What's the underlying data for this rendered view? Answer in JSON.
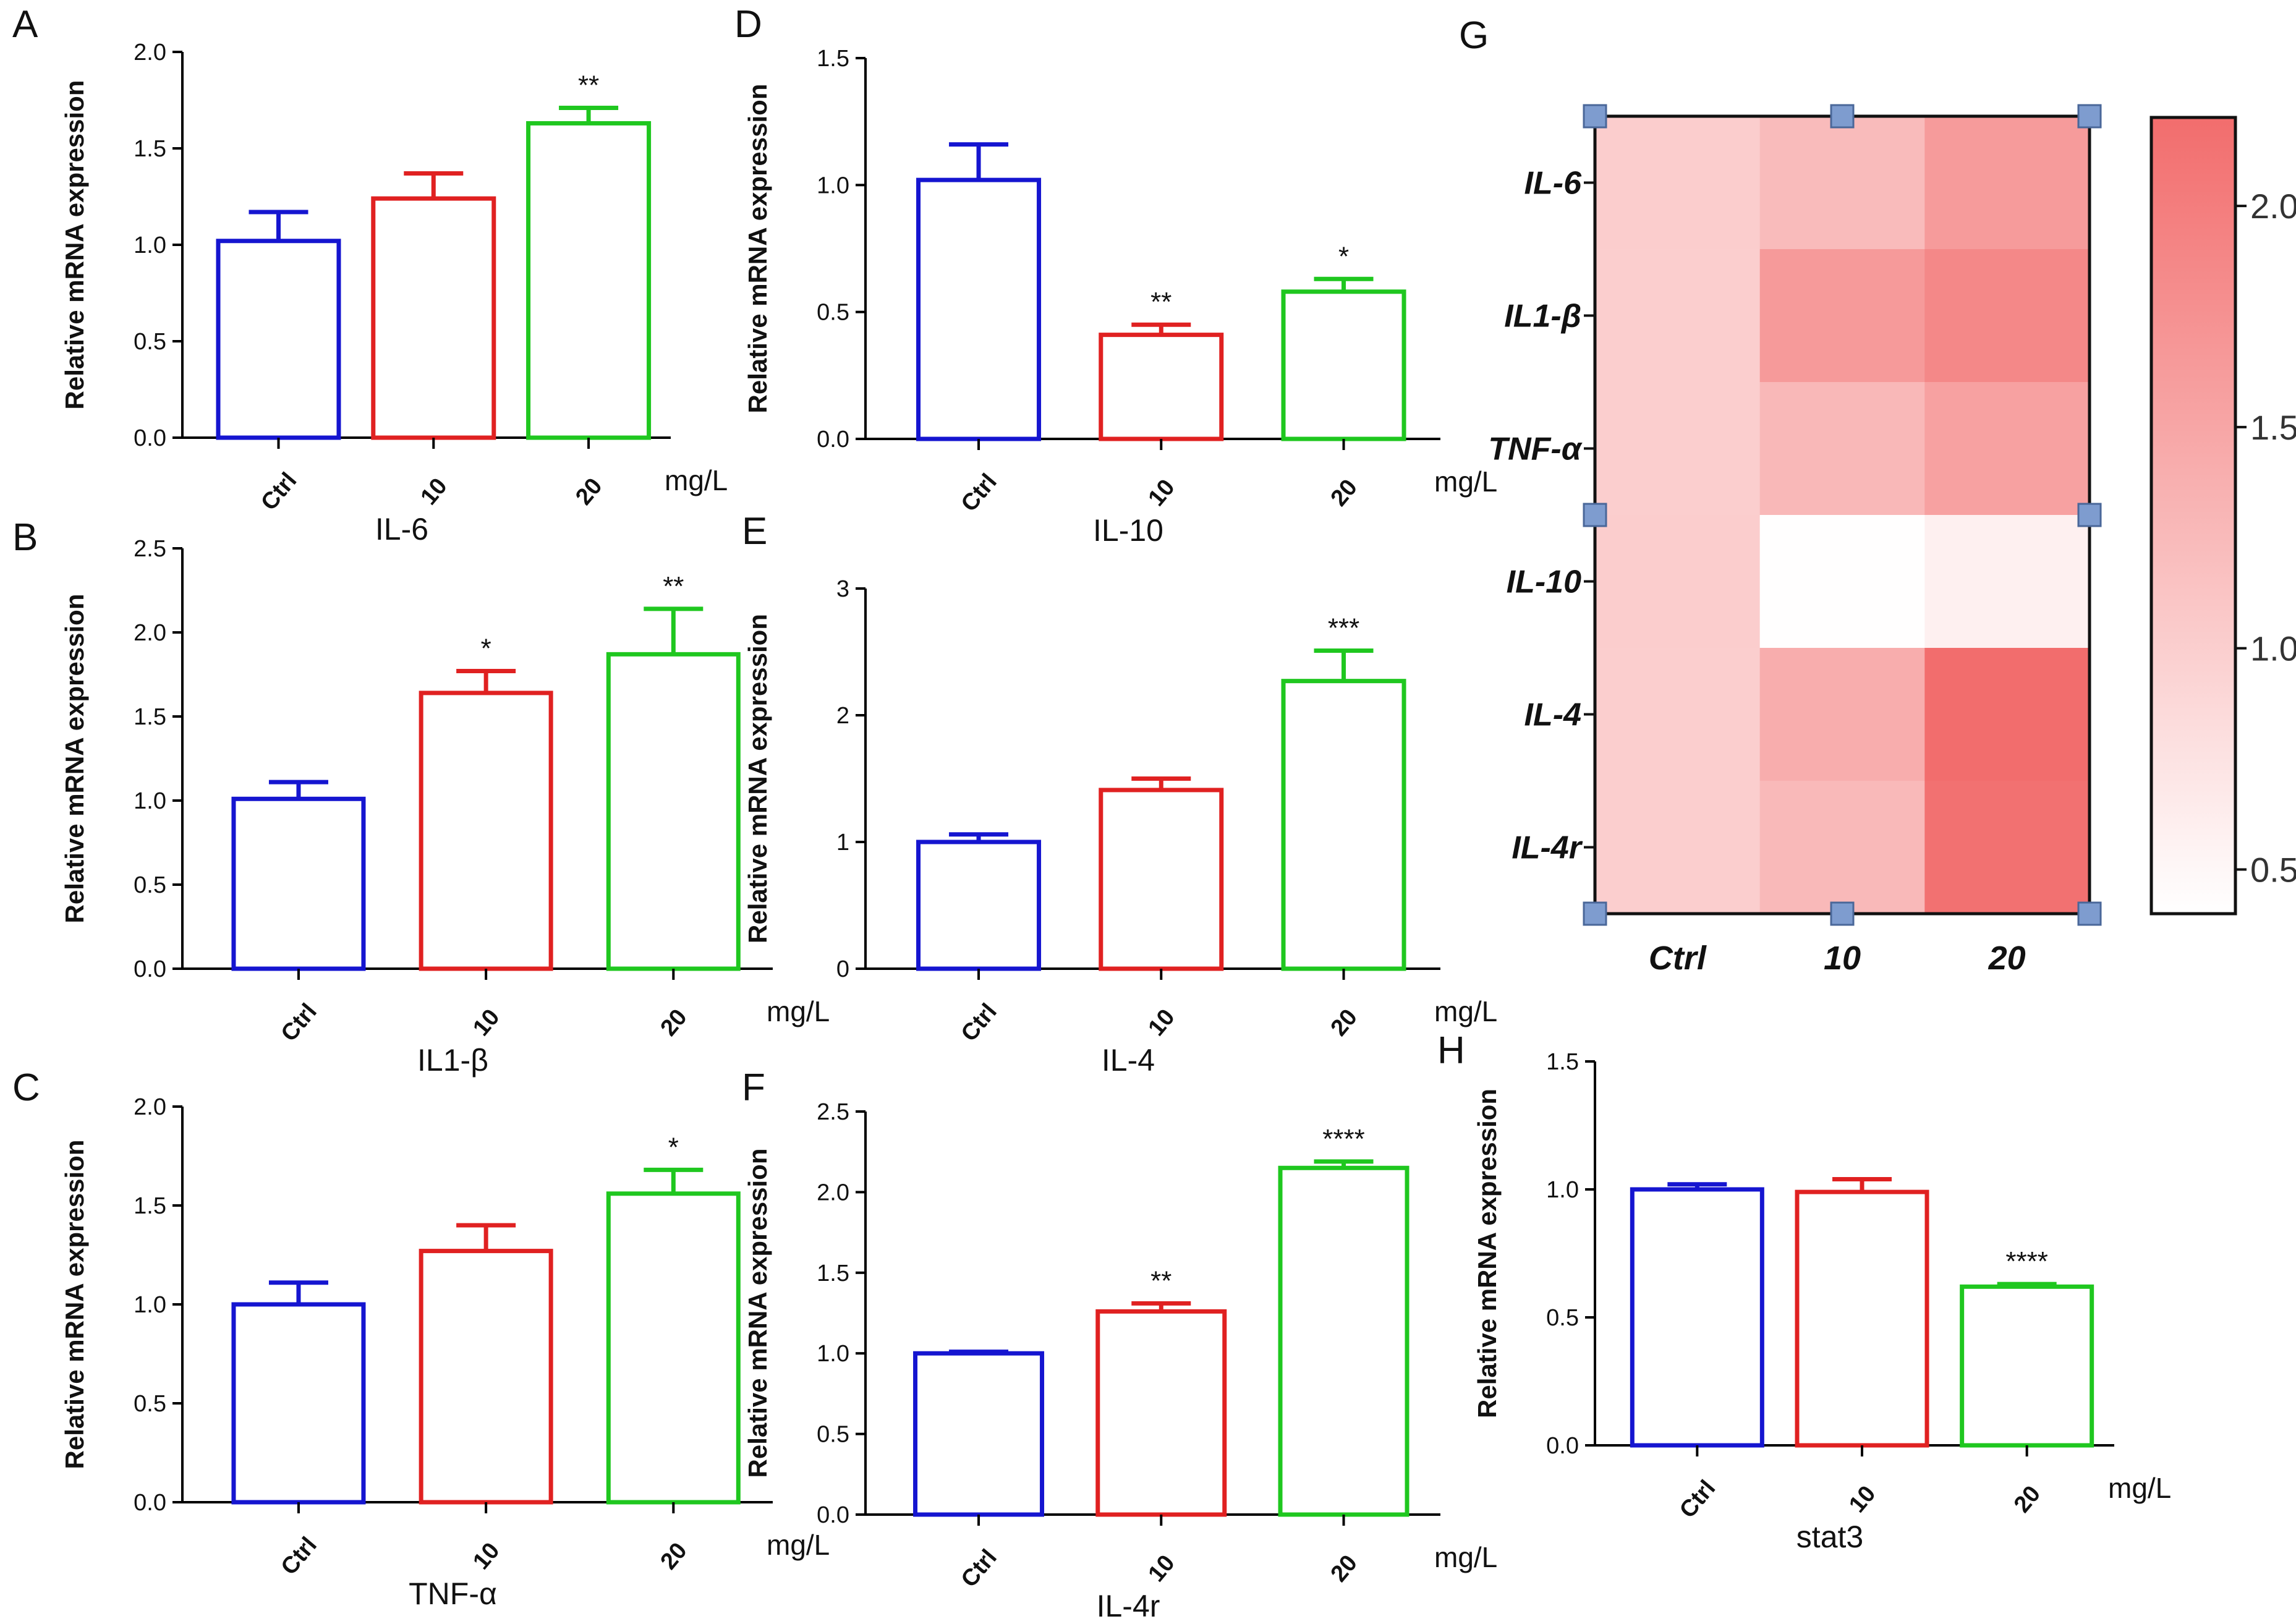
{
  "chart_data": [
    {
      "id": "A",
      "panel_label": "A",
      "type": "bar",
      "title": "IL-6",
      "ylabel": "Relative mRNA expression",
      "unit": "mg/L",
      "categories": [
        "Ctrl",
        "10",
        "20"
      ],
      "values": [
        1.02,
        1.24,
        1.63
      ],
      "errors": [
        0.15,
        0.13,
        0.08
      ],
      "significance": [
        "",
        "",
        "**"
      ],
      "ylim": [
        0,
        2.0
      ],
      "yticks": [
        "0.0",
        "0.5",
        "1.0",
        "1.5",
        "2.0"
      ]
    },
    {
      "id": "B",
      "panel_label": "B",
      "type": "bar",
      "title": "IL1-β",
      "ylabel": "Relative mRNA expression",
      "unit": "mg/L",
      "categories": [
        "Ctrl",
        "10",
        "20"
      ],
      "values": [
        1.01,
        1.64,
        1.87
      ],
      "errors": [
        0.1,
        0.13,
        0.27
      ],
      "significance": [
        "",
        "*",
        "**"
      ],
      "ylim": [
        0,
        2.5
      ],
      "yticks": [
        "0.0",
        "0.5",
        "1.0",
        "1.5",
        "2.0",
        "2.5"
      ]
    },
    {
      "id": "C",
      "panel_label": "C",
      "type": "bar",
      "title": "TNF-α",
      "ylabel": "Relative mRNA expression",
      "unit": "mg/L",
      "categories": [
        "Ctrl",
        "10",
        "20"
      ],
      "values": [
        1.0,
        1.27,
        1.56
      ],
      "errors": [
        0.11,
        0.13,
        0.12
      ],
      "significance": [
        "",
        "",
        "*"
      ],
      "ylim": [
        0,
        2.0
      ],
      "yticks": [
        "0.0",
        "0.5",
        "1.0",
        "1.5",
        "2.0"
      ]
    },
    {
      "id": "D",
      "panel_label": "D",
      "type": "bar",
      "title": "IL-10",
      "ylabel": "Relative mRNA expression",
      "unit": "mg/L",
      "categories": [
        "Ctrl",
        "10",
        "20"
      ],
      "values": [
        1.02,
        0.41,
        0.58
      ],
      "errors": [
        0.14,
        0.04,
        0.05
      ],
      "significance": [
        "",
        "**",
        "*"
      ],
      "ylim": [
        0,
        1.5
      ],
      "yticks": [
        "0.0",
        "0.5",
        "1.0",
        "1.5"
      ]
    },
    {
      "id": "E",
      "panel_label": "E",
      "type": "bar",
      "title": "IL-4",
      "ylabel": "Relative mRNA expression",
      "unit": "mg/L",
      "categories": [
        "Ctrl",
        "10",
        "20"
      ],
      "values": [
        1.0,
        1.41,
        2.27
      ],
      "errors": [
        0.06,
        0.09,
        0.24
      ],
      "significance": [
        "",
        "",
        "***"
      ],
      "ylim": [
        0,
        3
      ],
      "yticks": [
        "0",
        "1",
        "2",
        "3"
      ]
    },
    {
      "id": "F",
      "panel_label": "F",
      "type": "bar",
      "title": "IL-4r",
      "ylabel": "Relative mRNA expression",
      "unit": "mg/L",
      "categories": [
        "Ctrl",
        "10",
        "20"
      ],
      "values": [
        1.0,
        1.26,
        2.15
      ],
      "errors": [
        0.01,
        0.05,
        0.04
      ],
      "significance": [
        "",
        "**",
        "****"
      ],
      "ylim": [
        0,
        2.5
      ],
      "yticks": [
        "0.0",
        "0.5",
        "1.0",
        "1.5",
        "2.0",
        "2.5"
      ]
    },
    {
      "id": "G",
      "panel_label": "G",
      "type": "heatmap",
      "rows": [
        "IL-6",
        "IL1-β",
        "TNF-α",
        "IL-10",
        "IL-4",
        "IL-4r"
      ],
      "columns": [
        "Ctrl",
        "10",
        "20"
      ],
      "values": [
        [
          1.02,
          1.24,
          1.63
        ],
        [
          1.01,
          1.64,
          1.87
        ],
        [
          1.0,
          1.27,
          1.56
        ],
        [
          1.02,
          0.41,
          0.58
        ],
        [
          1.0,
          1.41,
          2.27
        ],
        [
          1.0,
          1.26,
          2.15
        ]
      ],
      "color_range": [
        0.4,
        2.2
      ],
      "colorbar_ticks": [
        "0.5",
        "1.0",
        "1.5",
        "2.0"
      ],
      "color_low": "#ffffff",
      "color_high": "#f26d6d"
    },
    {
      "id": "H",
      "panel_label": "H",
      "type": "bar",
      "title": "stat3",
      "ylabel": "Relative mRNA expression",
      "unit": "mg/L",
      "categories": [
        "Ctrl",
        "10",
        "20"
      ],
      "values": [
        1.0,
        0.99,
        0.62
      ],
      "errors": [
        0.02,
        0.05,
        0.01
      ],
      "significance": [
        "",
        "",
        "****"
      ],
      "ylim": [
        0,
        1.5
      ],
      "yticks": [
        "0.0",
        "0.5",
        "1.0",
        "1.5"
      ]
    }
  ],
  "colors": {
    "series": [
      "#1515d0",
      "#e02121",
      "#1fc71f"
    ],
    "axis": "#000000",
    "text": "#111111"
  }
}
